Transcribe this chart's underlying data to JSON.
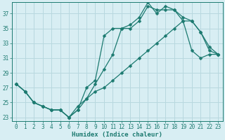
{
  "title": "",
  "xlabel": "Humidex (Indice chaleur)",
  "ylabel": "",
  "bg_color": "#d8eef3",
  "grid_color": "#b8d8df",
  "line_color": "#1c7a70",
  "xlim": [
    -0.5,
    23.5
  ],
  "ylim": [
    22.5,
    38.5
  ],
  "xticks": [
    0,
    1,
    2,
    3,
    4,
    5,
    6,
    7,
    8,
    9,
    10,
    11,
    12,
    13,
    14,
    15,
    16,
    17,
    18,
    19,
    20,
    21,
    22,
    23
  ],
  "yticks": [
    23,
    25,
    27,
    29,
    31,
    33,
    35,
    37
  ],
  "line1": {
    "x": [
      0,
      1,
      2,
      3,
      4,
      5,
      6,
      7,
      8,
      9,
      10,
      11,
      12,
      13,
      14,
      15,
      16,
      17,
      18,
      19,
      20,
      21,
      22,
      23
    ],
    "y": [
      27.5,
      26.5,
      25.0,
      24.5,
      24.0,
      24.0,
      23.0,
      24.0,
      25.5,
      27.5,
      29.5,
      31.5,
      35.0,
      35.0,
      36.0,
      38.0,
      37.5,
      37.5,
      37.5,
      36.5,
      36.0,
      34.5,
      32.0,
      31.5
    ]
  },
  "line2": {
    "x": [
      0,
      1,
      2,
      3,
      4,
      5,
      6,
      7,
      8,
      9,
      10,
      11,
      12,
      13,
      14,
      15,
      16,
      17,
      18,
      19,
      20,
      21,
      22,
      23
    ],
    "y": [
      27.5,
      26.5,
      25.0,
      24.5,
      24.0,
      24.0,
      23.0,
      24.0,
      27.0,
      28.0,
      34.0,
      35.0,
      35.0,
      35.5,
      36.5,
      38.5,
      37.0,
      38.0,
      37.5,
      36.0,
      36.0,
      34.5,
      32.5,
      31.5
    ]
  },
  "line3": {
    "x": [
      0,
      1,
      2,
      3,
      4,
      5,
      6,
      7,
      8,
      9,
      10,
      11,
      12,
      13,
      14,
      15,
      16,
      17,
      18,
      19,
      20,
      21,
      22,
      23
    ],
    "y": [
      27.5,
      26.5,
      25.0,
      24.5,
      24.0,
      24.0,
      23.0,
      24.5,
      25.5,
      26.5,
      27.0,
      28.0,
      29.0,
      30.0,
      31.0,
      32.0,
      33.0,
      34.0,
      35.0,
      36.0,
      32.0,
      31.0,
      31.5,
      31.5
    ]
  },
  "marker_size": 2.5,
  "line_width": 0.9,
  "tick_fontsize": 5.5,
  "xlabel_fontsize": 6.5
}
